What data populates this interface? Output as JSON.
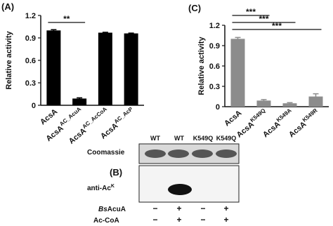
{
  "chart_data": [
    {
      "type": "bar",
      "panel_label": "(A)",
      "y_label": "Relative activity",
      "categories": [
        "AcsA",
        "AcsA",
        "AcsA",
        "AcsA"
      ],
      "category_superscripts": [
        null,
        "AC_AcuA",
        "AC_AcCoA",
        "AC_AcP"
      ],
      "values": [
        1.0,
        0.09,
        0.97,
        0.96
      ],
      "errors": [
        0.01,
        0.01,
        0.005,
        0.005
      ],
      "color": "#000000",
      "ylim": [
        0,
        1.2
      ],
      "yticks": [
        0,
        0.3,
        0.6,
        0.9,
        1.2
      ],
      "significance": [
        {
          "categories": [
            0,
            1
          ],
          "label": "**"
        }
      ]
    },
    {
      "type": "bar",
      "panel_label": "(C)",
      "y_label": "Relative activity",
      "categories": [
        "AcsA",
        "AcsA",
        "AcsA",
        "AcsA"
      ],
      "category_superscripts": [
        null,
        "K549Q",
        "K549A",
        "K549R"
      ],
      "values": [
        1.0,
        0.09,
        0.05,
        0.15
      ],
      "errors": [
        0.02,
        0.015,
        0.01,
        0.04
      ],
      "color": "#8c8c8c",
      "ylim": [
        0,
        1.2
      ],
      "yticks": [
        0,
        0.3,
        0.6,
        0.9,
        1.2
      ],
      "significance": [
        {
          "categories": [
            0,
            1
          ],
          "label": "***"
        },
        {
          "categories": [
            0,
            2
          ],
          "label": "***"
        },
        {
          "categories": [
            0,
            3
          ],
          "label": "***"
        }
      ]
    }
  ],
  "blot": {
    "panel_label": "(B)",
    "lanes": [
      "WT",
      "WT",
      "K549Q",
      "K549Q"
    ],
    "rows": [
      "Coomassie",
      "anti-Ac"
    ],
    "row_superscript": "K",
    "conditions": [
      {
        "name_italic": "Bs",
        "name": "AcuA",
        "marks": [
          "−",
          "+",
          "−",
          "+"
        ]
      },
      {
        "name": "Ac-CoA",
        "marks": [
          "−",
          "+",
          "−",
          "+"
        ]
      }
    ]
  }
}
